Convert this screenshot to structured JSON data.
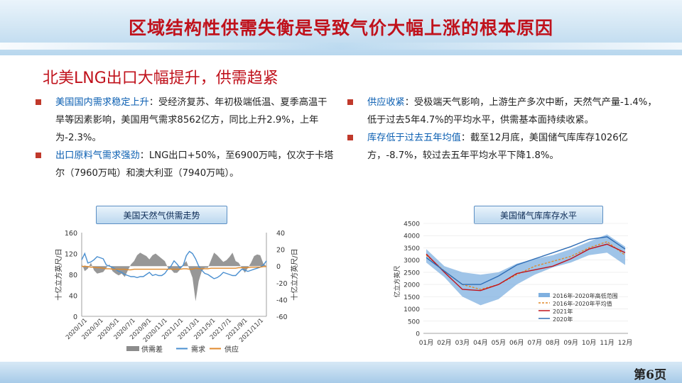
{
  "slide": {
    "title": "区域结构性供需失衡是导致气价大幅上涨的根本原因",
    "section_title": "北美LNG出口大幅提升，供需趋紧",
    "page_number": "第6页"
  },
  "bullets_left": [
    {
      "key": "美国国内需求稳定上升",
      "text": "：受经济复苏、年初极端低温、夏季高温干旱等因素影响，美国用气需求8562亿方，同比上升2.9%，上年为-2.3%。"
    },
    {
      "key": "出口原料气需求强劲",
      "text": "：LNG出口+50%，至6900万吨，仅次于卡塔尔（7960万吨）和澳大利亚（7940万吨）。"
    }
  ],
  "bullets_right": [
    {
      "key": "供应收紧",
      "text": "：受极端天气影响，上游生产多次中断，天然气产量-1.4%，低于过去5年4.7%的平均水平，供需基本面持续收紧。"
    },
    {
      "key": "库存低于过去五年均值",
      "text": "：截至12月底，美国储气库库存1026亿方，-8.7%，较过去五年平均水平下降1.8%。"
    }
  ],
  "colors": {
    "accent_red": "#c0121c",
    "key_blue": "#0b5fb2",
    "bullet_red": "#c0392b"
  },
  "chart_data": [
    {
      "type": "area",
      "title": "美国天然气供需走势",
      "ylabel_left": "十亿立方英尺/日",
      "ylabel_right": "十亿立方英尺/日",
      "ylim_left": [
        0,
        160
      ],
      "ylim_right": [
        -60,
        40
      ],
      "yticks_left": [
        "160",
        "120",
        "80",
        "40",
        "0"
      ],
      "yticks_right": [
        "40",
        "20",
        "0",
        "-20",
        "-40",
        "-60"
      ],
      "x_ticks": [
        "2020/1/1",
        "2020/3/1",
        "2020/5/1",
        "2020/7/1",
        "2020/9/1",
        "2020/11/1",
        "2021/1/1",
        "2021/3/1",
        "2021/5/1",
        "2021/7/1",
        "2021/9/1",
        "2021/11/1"
      ],
      "series": [
        {
          "name": "供需差",
          "axis": "right",
          "color": "#8c8c8c",
          "values": [
            3,
            -6,
            -3,
            4,
            -5,
            -9,
            -8,
            -7,
            -2,
            2,
            -6,
            -9,
            -11,
            -9,
            -13,
            -5,
            2,
            6,
            13,
            16,
            14,
            12,
            8,
            13,
            15,
            12,
            9,
            6,
            -2,
            -4,
            -8,
            -8,
            -4,
            2,
            6,
            -4,
            -14,
            -42,
            -18,
            -6,
            -2,
            -2,
            7,
            16,
            13,
            9,
            5,
            7,
            11,
            16,
            6,
            4,
            -2,
            -8,
            -2,
            4,
            12,
            14,
            13,
            3,
            0
          ]
        },
        {
          "name": "需求",
          "axis": "left",
          "color": "#4a8fd0",
          "values": [
            108,
            120,
            102,
            104,
            108,
            114,
            112,
            110,
            98,
            96,
            94,
            90,
            86,
            84,
            80,
            78,
            76,
            76,
            74,
            76,
            76,
            80,
            84,
            78,
            80,
            78,
            78,
            82,
            90,
            96,
            106,
            100,
            92,
            98,
            116,
            124,
            120,
            110,
            96,
            88,
            82,
            80,
            76,
            72,
            74,
            78,
            84,
            82,
            80,
            78,
            78,
            84,
            90,
            88,
            86,
            88,
            90,
            92,
            94,
            98,
            106
          ]
        },
        {
          "name": "供应",
          "axis": "left",
          "color": "#e08a2c",
          "values": [
            95,
            96,
            95,
            94,
            94,
            93,
            93,
            92,
            91,
            91,
            90,
            90,
            90,
            90,
            90,
            89,
            89,
            90,
            90,
            90,
            90,
            90,
            90,
            90,
            90,
            90,
            90,
            90,
            90,
            90,
            90,
            90,
            90,
            91,
            91,
            90,
            90,
            92,
            91,
            91,
            91,
            91,
            92,
            92,
            92,
            92,
            92,
            92,
            92,
            92,
            92,
            93,
            93,
            93,
            93,
            94,
            94,
            94,
            94,
            95,
            95
          ]
        }
      ],
      "legend": [
        "供需差",
        "需求",
        "供应"
      ],
      "legend_placement": "bottom"
    },
    {
      "type": "line",
      "title": "美国储气库库存水平",
      "ylabel": "亿立方英尺",
      "ylim": [
        0,
        4500
      ],
      "yticks": [
        "4500",
        "4000",
        "3500",
        "3000",
        "2500",
        "2000",
        "1500",
        "1000",
        "500",
        "0"
      ],
      "categories": [
        "01月",
        "02月",
        "03月",
        "04月",
        "05月",
        "06月",
        "07月",
        "08月",
        "09月",
        "10月",
        "11月",
        "12月"
      ],
      "series": [
        {
          "name": "2016年-2020年高低范围",
          "type": "band",
          "color": "#7fb0e0",
          "low": [
            2900,
            2300,
            1500,
            1150,
            1400,
            2000,
            2400,
            2700,
            2900,
            3200,
            3300,
            2800
          ],
          "high": [
            3450,
            2750,
            2500,
            2400,
            2500,
            2850,
            3050,
            3200,
            3450,
            3750,
            4050,
            3550
          ]
        },
        {
          "name": "2016年-2020年平均值",
          "type": "dash",
          "color": "#e08a2c",
          "values": [
            3200,
            2550,
            2000,
            1800,
            2000,
            2400,
            2750,
            2950,
            3150,
            3500,
            3750,
            3200
          ]
        },
        {
          "name": "2021年",
          "color": "#c0121c",
          "values": [
            3250,
            2500,
            1800,
            1750,
            2000,
            2450,
            2600,
            2750,
            3050,
            3450,
            3650,
            3300
          ]
        },
        {
          "name": "2020年",
          "color": "#2f6db5",
          "values": [
            3100,
            2550,
            2000,
            2000,
            2350,
            2800,
            3050,
            3300,
            3550,
            3850,
            3950,
            3450
          ]
        }
      ],
      "legend_placement": "bottom-right"
    }
  ]
}
